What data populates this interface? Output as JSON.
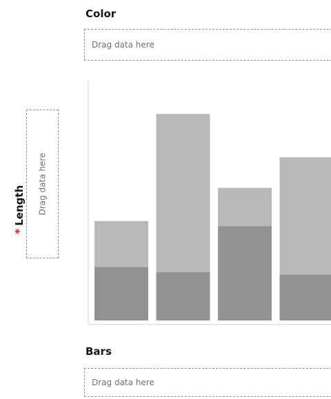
{
  "color_well": {
    "label": "Color",
    "placeholder": "Drag data here"
  },
  "length_well": {
    "label": "Length",
    "required_marker": "*",
    "placeholder": "Drag data here"
  },
  "bars_well": {
    "label": "Bars",
    "placeholder": "Drag data here"
  },
  "colors": {
    "required": "#da1e28",
    "bar_light": "#bab8ba",
    "bar_dark": "#939193"
  },
  "chart_data": {
    "type": "bar",
    "categories": [
      "",
      "",
      "",
      ""
    ],
    "series": [
      {
        "values": [
          21,
          19,
          37,
          18
        ]
      },
      {
        "values": [
          18,
          62,
          15,
          46
        ]
      }
    ],
    "ylim": [
      0,
      100
    ],
    "grid": false
  }
}
